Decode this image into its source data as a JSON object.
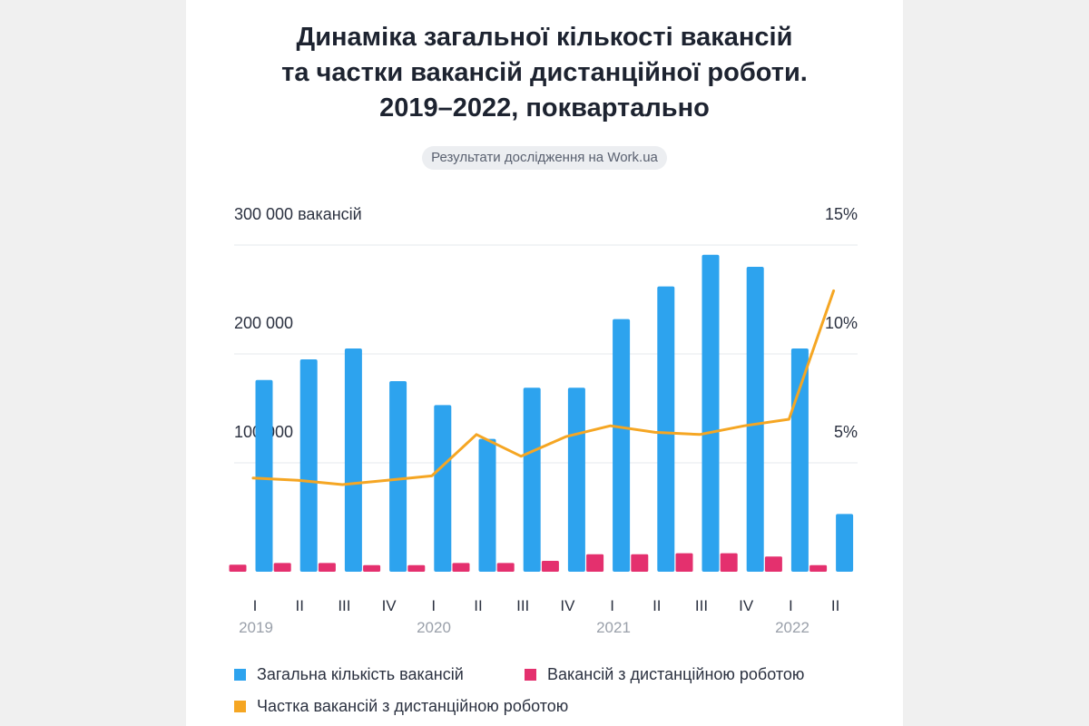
{
  "title_lines": [
    "Динаміка загальної кількості вакансій",
    "та частки вакансій дистанційної роботи.",
    "2019–2022, поквартально"
  ],
  "source": "Результати дослідження на Work.ua",
  "colors": {
    "total": "#2da3ee",
    "remote": "#e4306e",
    "share": "#f5a623",
    "grid": "#e6e8ec"
  },
  "chart_data": {
    "type": "bar",
    "categories": [
      "I",
      "II",
      "III",
      "IV",
      "I",
      "II",
      "III",
      "IV",
      "I",
      "II",
      "III",
      "IV",
      "I",
      "II"
    ],
    "years": [
      {
        "label": "2019",
        "start": 0
      },
      {
        "label": "2020",
        "start": 4
      },
      {
        "label": "2021",
        "start": 8
      },
      {
        "label": "2022",
        "start": 12
      }
    ],
    "left_axis": {
      "ylim": [
        0,
        300000
      ],
      "ticks": [
        {
          "value": 300000,
          "label": "300 000 вакансій"
        },
        {
          "value": 200000,
          "label": "200 000"
        },
        {
          "value": 100000,
          "label": "100 000"
        }
      ]
    },
    "right_axis": {
      "ylim": [
        0,
        15
      ],
      "ticks": [
        {
          "value": 15,
          "label": "15%"
        },
        {
          "value": 10,
          "label": "10%"
        },
        {
          "value": 5,
          "label": "5%"
        }
      ]
    },
    "series": [
      {
        "name": "Загальна кількість вакансій",
        "type": "bar",
        "axis": "left",
        "values": [
          176000,
          195000,
          205000,
          175000,
          153000,
          122000,
          169000,
          169000,
          232000,
          262000,
          291000,
          280000,
          205000,
          53000
        ]
      },
      {
        "name": "Вакансій з дистанційною роботою",
        "type": "bar",
        "axis": "left",
        "values": [
          6500,
          8000,
          8000,
          6000,
          6000,
          8000,
          8000,
          10000,
          16000,
          16000,
          17000,
          17000,
          14000,
          6000
        ]
      },
      {
        "name": "Частка вакансій з дистанційною роботою",
        "type": "line",
        "axis": "right",
        "values": [
          4.3,
          4.2,
          4.0,
          4.2,
          4.4,
          6.3,
          5.3,
          6.2,
          6.7,
          6.4,
          6.3,
          6.7,
          7.0,
          12.9
        ]
      }
    ]
  }
}
